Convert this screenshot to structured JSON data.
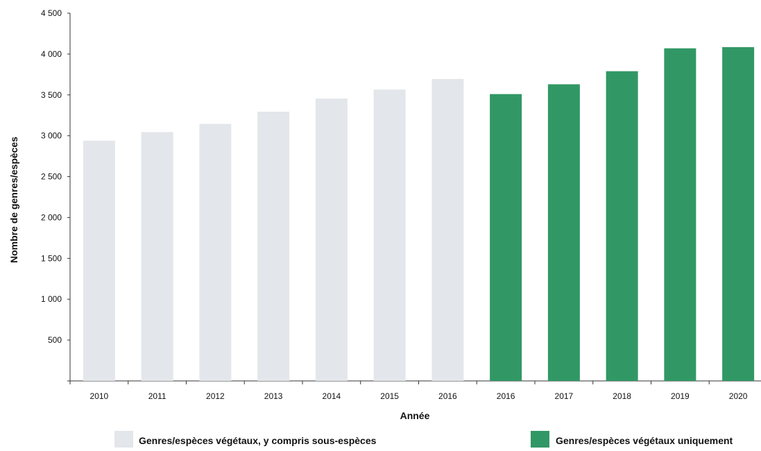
{
  "chart_data": {
    "type": "bar",
    "title": "",
    "xlabel": "Année",
    "ylabel": "Nombre de genres/espèces",
    "ylim": [
      0,
      4500
    ],
    "yticks": [
      500,
      1000,
      1500,
      2000,
      2500,
      3000,
      3500,
      4000,
      4500
    ],
    "ytick_labels": [
      "500",
      "1 000",
      "1 500",
      "2 000",
      "2 500",
      "3 000",
      "3 500",
      "4 000",
      "4 500"
    ],
    "grid": false,
    "legend_position": "bottom",
    "categories": [
      "2010",
      "2011",
      "2012",
      "2013",
      "2014",
      "2015",
      "2016",
      "2016",
      "2017",
      "2018",
      "2019",
      "2020"
    ],
    "series": [
      {
        "name": "Genres/espèces végétaux, y compris sous-espèces",
        "color": "#e3e6ea",
        "values": [
          2940,
          3045,
          3145,
          3295,
          3455,
          3565,
          3695,
          null,
          null,
          null,
          null,
          null
        ]
      },
      {
        "name": "Genres/espèces végétaux uniquement",
        "color": "#319865",
        "values": [
          null,
          null,
          null,
          null,
          null,
          null,
          null,
          3510,
          3630,
          3790,
          4070,
          4085
        ]
      }
    ]
  }
}
